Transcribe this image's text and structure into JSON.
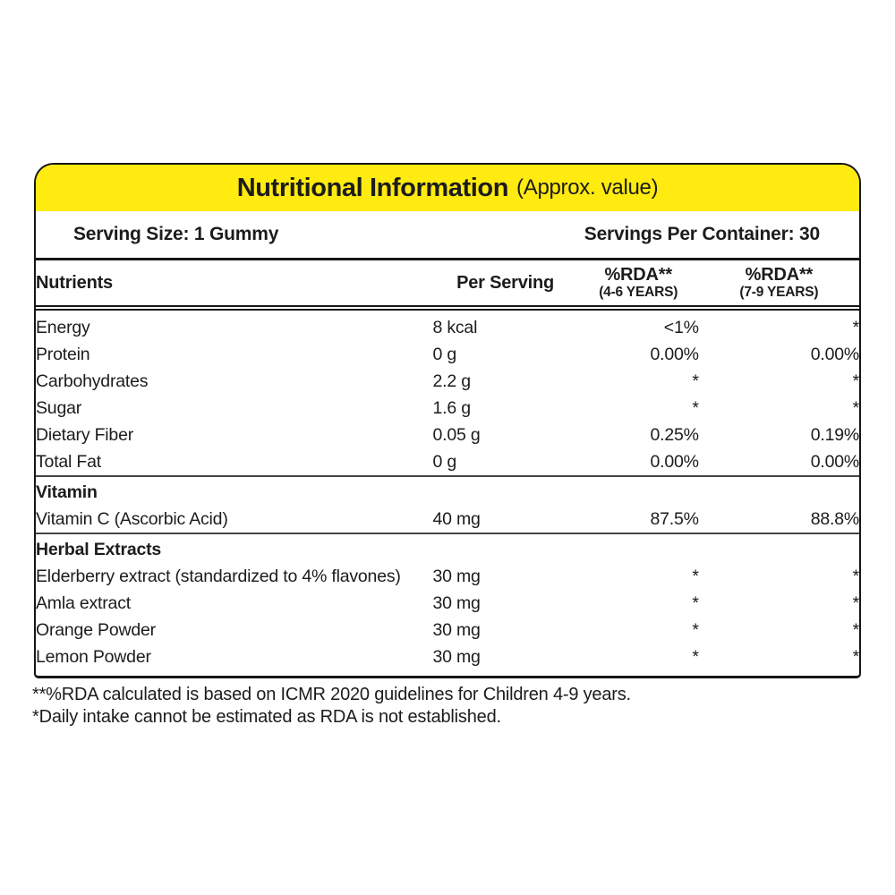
{
  "panel": {
    "title_main": "Nutritional Information",
    "title_suffix": "(Approx. value)",
    "serving_size": "Serving Size: 1 Gummy",
    "servings_per_container": "Servings Per Container: 30"
  },
  "columns": {
    "nutrients": "Nutrients",
    "per_serving": "Per Serving",
    "rda_4_6_line1": "%RDA**",
    "rda_4_6_line2": "(4-6 YEARS)",
    "rda_7_9_line1": "%RDA**",
    "rda_7_9_line2": "(7-9 YEARS)"
  },
  "rows": [
    {
      "type": "item",
      "name": "Energy",
      "per_serving": "8 kcal",
      "rda_4_6": "<1%",
      "rda_7_9": "*"
    },
    {
      "type": "item",
      "name": "Protein",
      "per_serving": "0 g",
      "rda_4_6": "0.00%",
      "rda_7_9": "0.00%"
    },
    {
      "type": "item",
      "name": "Carbohydrates",
      "per_serving": "2.2 g",
      "rda_4_6": "*",
      "rda_7_9": "*"
    },
    {
      "type": "item",
      "name": "Sugar",
      "per_serving": "1.6 g",
      "rda_4_6": "*",
      "rda_7_9": "*"
    },
    {
      "type": "item",
      "name": "Dietary Fiber",
      "per_serving": "0.05 g",
      "rda_4_6": "0.25%",
      "rda_7_9": "0.19%"
    },
    {
      "type": "item",
      "name": "Total Fat",
      "per_serving": "0 g",
      "rda_4_6": "0.00%",
      "rda_7_9": "0.00%"
    },
    {
      "type": "section",
      "name": "Vitamin"
    },
    {
      "type": "item",
      "name": "Vitamin C (Ascorbic Acid)",
      "per_serving": "40 mg",
      "rda_4_6": "87.5%",
      "rda_7_9": "88.8%"
    },
    {
      "type": "section",
      "name": "Herbal Extracts"
    },
    {
      "type": "item",
      "name": "Elderberry extract (standardized to 4% flavones)",
      "per_serving": "30 mg",
      "rda_4_6": "*",
      "rda_7_9": "*"
    },
    {
      "type": "item",
      "name": "Amla extract",
      "per_serving": "30 mg",
      "rda_4_6": "*",
      "rda_7_9": "*"
    },
    {
      "type": "item",
      "name": "Orange Powder",
      "per_serving": "30 mg",
      "rda_4_6": "*",
      "rda_7_9": "*"
    },
    {
      "type": "item",
      "name": "Lemon Powder",
      "per_serving": "30 mg",
      "rda_4_6": "*",
      "rda_7_9": "*"
    }
  ],
  "footnotes": [
    "**%RDA calculated is based on ICMR 2020 guidelines for Children 4-9 years.",
    "*Daily intake cannot be estimated as RDA is not established."
  ],
  "colors": {
    "header_yellow": "#FFEB0F",
    "border_black": "#161616",
    "text": "#1c1c1c"
  }
}
